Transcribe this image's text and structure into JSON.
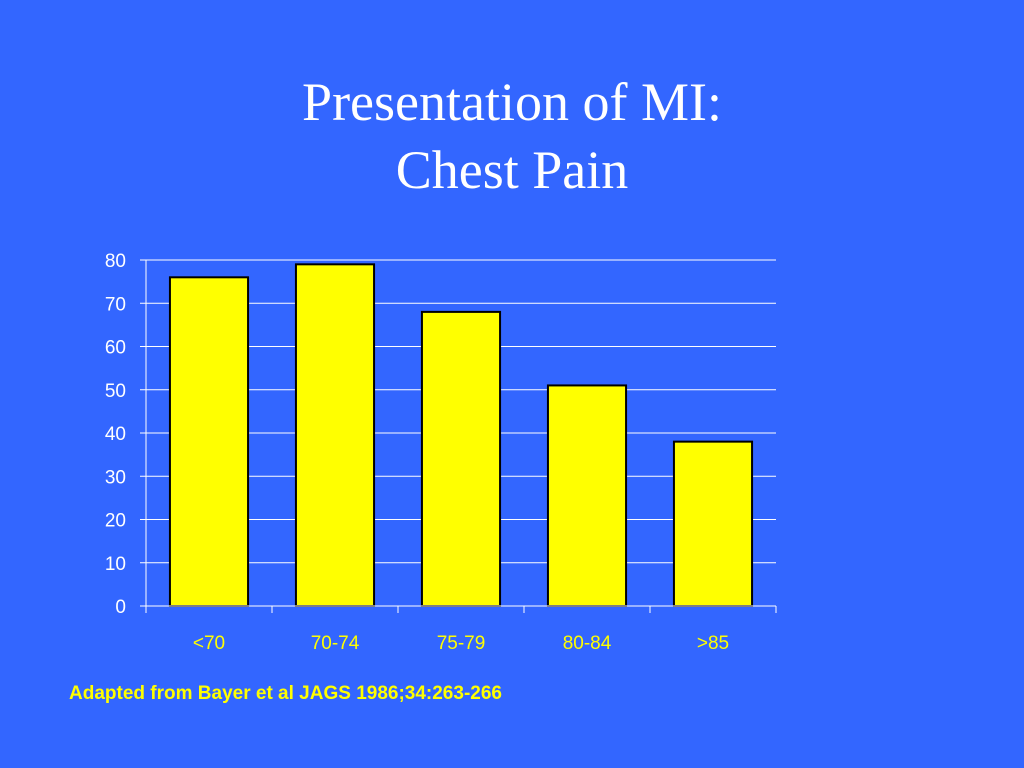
{
  "slide": {
    "title_line1": "Presentation of MI:",
    "title_line2": "Chest Pain",
    "source_note": "Adapted from Bayer et al JAGS 1986;34:263-266"
  },
  "colors": {
    "background": "#3366ff",
    "bar_fill": "#ffff00",
    "bar_stroke": "#000000",
    "text": "#ffffff",
    "note_text": "#ffff00",
    "grid": "#ffffff"
  },
  "chart_data": {
    "type": "bar",
    "categories": [
      "<70",
      "70-74",
      "75-79",
      "80-84",
      ">85"
    ],
    "values": [
      76,
      79,
      68,
      51,
      38
    ],
    "ylim": [
      0,
      80
    ],
    "yticks": [
      0,
      10,
      20,
      30,
      40,
      50,
      60,
      70,
      80
    ],
    "grid": true,
    "legend": "none",
    "title": "",
    "xlabel": "",
    "ylabel": ""
  }
}
